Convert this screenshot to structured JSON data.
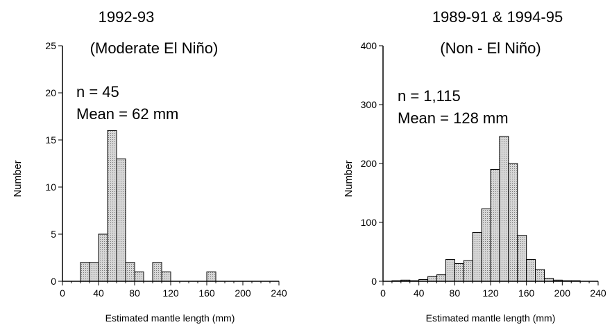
{
  "chart_data": [
    {
      "type": "bar",
      "title": "1992-93",
      "subtitle": "(Moderate El Niño)",
      "xlabel": "Estimated mantle length (mm)",
      "ylabel": "Number",
      "annotation_lines": [
        "n = 45",
        "Mean = 62 mm"
      ],
      "xlim": [
        0,
        240
      ],
      "ylim": [
        0,
        25
      ],
      "xticks": [
        "0",
        "40",
        "80",
        "120",
        "160",
        "200",
        "240"
      ],
      "yticks": [
        "0",
        "5",
        "10",
        "15",
        "20",
        "25"
      ],
      "bin_width": 10,
      "bin_starts": [
        20,
        30,
        40,
        50,
        60,
        70,
        80,
        90,
        100,
        110,
        120,
        130,
        140,
        150,
        160
      ],
      "values": [
        2,
        2,
        5,
        16,
        13,
        2,
        1,
        0,
        2,
        1,
        0,
        0,
        0,
        0,
        1
      ],
      "bar_fill": "#d6d6d6"
    },
    {
      "type": "bar",
      "title": "1989-91 & 1994-95",
      "subtitle": "(Non - El Niño)",
      "xlabel": "Estimated mantle length (mm)",
      "ylabel": "Number",
      "annotation_lines": [
        "n = 1,115",
        "Mean = 128 mm"
      ],
      "xlim": [
        0,
        240
      ],
      "ylim": [
        0,
        400
      ],
      "xticks": [
        "0",
        "40",
        "80",
        "120",
        "160",
        "200",
        "240"
      ],
      "yticks": [
        "0",
        "100",
        "200",
        "300",
        "400"
      ],
      "bin_width": 10,
      "bin_starts": [
        10,
        20,
        30,
        40,
        50,
        60,
        70,
        80,
        90,
        100,
        110,
        120,
        130,
        140,
        150,
        160,
        170,
        180,
        190,
        200,
        210
      ],
      "values": [
        1,
        2,
        1,
        3,
        8,
        11,
        37,
        30,
        35,
        83,
        123,
        190,
        246,
        200,
        78,
        37,
        20,
        5,
        2,
        1,
        1
      ],
      "bar_fill": "#d6d6d6"
    }
  ]
}
